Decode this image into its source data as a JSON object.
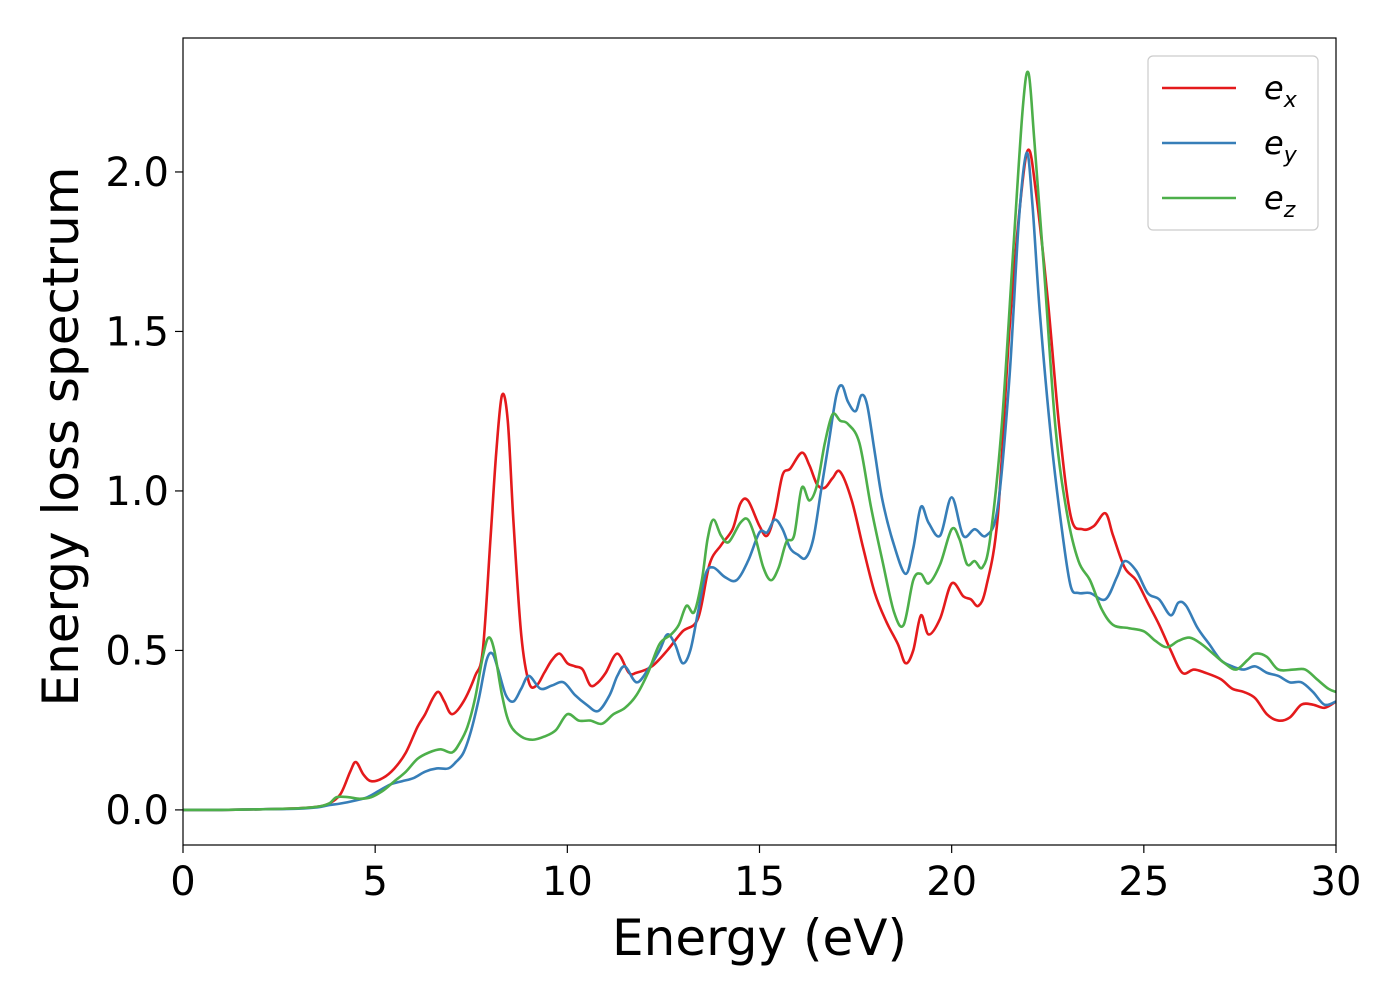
{
  "chart_data": {
    "type": "line",
    "xlabel": "Energy (eV)",
    "ylabel": "Energy loss spectrum",
    "xlim": [
      0,
      30
    ],
    "ylim": [
      -0.11,
      2.42
    ],
    "xticks": [
      0,
      5,
      10,
      15,
      20,
      25,
      30
    ],
    "xtick_labels": [
      "0",
      "5",
      "10",
      "15",
      "20",
      "25",
      "30"
    ],
    "yticks": [
      0.0,
      0.5,
      1.0,
      1.5,
      2.0
    ],
    "ytick_labels": [
      "0.0",
      "0.5",
      "1.0",
      "1.5",
      "2.0"
    ],
    "grid": false,
    "legend_position": "top-right",
    "series": [
      {
        "name": "e_x",
        "legend_base": "e",
        "legend_sub": "x",
        "color": "#e41a1c",
        "x": [
          0,
          1,
          2,
          3,
          3.5,
          3.8,
          4.1,
          4.35,
          4.5,
          4.7,
          4.9,
          5.2,
          5.5,
          5.8,
          6.1,
          6.3,
          6.5,
          6.65,
          6.8,
          7.0,
          7.3,
          7.6,
          7.8,
          8.0,
          8.15,
          8.3,
          8.45,
          8.6,
          8.8,
          9.0,
          9.2,
          9.4,
          9.6,
          9.8,
          10.0,
          10.2,
          10.4,
          10.6,
          10.8,
          11.0,
          11.3,
          11.6,
          11.8,
          12.2,
          12.6,
          13.0,
          13.4,
          13.7,
          14.0,
          14.3,
          14.5,
          14.7,
          15.0,
          15.2,
          15.4,
          15.6,
          15.8,
          16.1,
          16.3,
          16.5,
          16.7,
          16.9,
          17.1,
          17.4,
          17.7,
          18.0,
          18.3,
          18.6,
          18.8,
          19.0,
          19.2,
          19.4,
          19.7,
          20.0,
          20.3,
          20.5,
          20.7,
          20.9,
          21.2,
          21.5,
          21.8,
          22.0,
          22.2,
          22.5,
          22.8,
          23.1,
          23.4,
          23.7,
          24.0,
          24.2,
          24.5,
          24.8,
          25.1,
          25.4,
          25.7,
          26.0,
          26.3,
          26.6,
          27.0,
          27.3,
          27.6,
          27.9,
          28.2,
          28.5,
          28.8,
          29.1,
          29.4,
          29.7,
          30.0
        ],
        "y": [
          0.0,
          0.0,
          0.002,
          0.005,
          0.01,
          0.02,
          0.05,
          0.12,
          0.15,
          0.11,
          0.09,
          0.1,
          0.13,
          0.18,
          0.26,
          0.3,
          0.35,
          0.37,
          0.34,
          0.3,
          0.34,
          0.42,
          0.5,
          0.85,
          1.12,
          1.3,
          1.22,
          0.9,
          0.55,
          0.4,
          0.39,
          0.43,
          0.47,
          0.49,
          0.46,
          0.45,
          0.44,
          0.39,
          0.4,
          0.43,
          0.49,
          0.43,
          0.43,
          0.45,
          0.5,
          0.56,
          0.6,
          0.77,
          0.83,
          0.88,
          0.96,
          0.97,
          0.89,
          0.86,
          0.93,
          1.05,
          1.07,
          1.12,
          1.08,
          1.02,
          1.01,
          1.04,
          1.06,
          0.97,
          0.82,
          0.68,
          0.59,
          0.52,
          0.46,
          0.5,
          0.61,
          0.55,
          0.6,
          0.71,
          0.67,
          0.66,
          0.64,
          0.7,
          0.92,
          1.5,
          1.92,
          2.07,
          1.93,
          1.6,
          1.2,
          0.92,
          0.88,
          0.89,
          0.93,
          0.86,
          0.76,
          0.72,
          0.65,
          0.58,
          0.5,
          0.43,
          0.44,
          0.43,
          0.41,
          0.38,
          0.37,
          0.35,
          0.3,
          0.28,
          0.29,
          0.33,
          0.33,
          0.32,
          0.34
        ]
      },
      {
        "name": "e_y",
        "legend_base": "e",
        "legend_sub": "y",
        "color": "#377eb8",
        "x": [
          0,
          1,
          2,
          3,
          3.5,
          3.8,
          4.1,
          4.5,
          4.8,
          5.1,
          5.4,
          5.7,
          6.0,
          6.3,
          6.6,
          6.9,
          7.1,
          7.3,
          7.5,
          7.7,
          7.9,
          8.05,
          8.2,
          8.4,
          8.6,
          8.8,
          9.0,
          9.3,
          9.6,
          9.9,
          10.2,
          10.5,
          10.8,
          11.1,
          11.3,
          11.5,
          11.8,
          12.1,
          12.4,
          12.6,
          12.8,
          13.0,
          13.2,
          13.4,
          13.6,
          13.8,
          14.1,
          14.4,
          14.7,
          15.0,
          15.2,
          15.4,
          15.6,
          15.8,
          16.0,
          16.2,
          16.4,
          16.6,
          16.8,
          17.0,
          17.15,
          17.3,
          17.5,
          17.65,
          17.8,
          18.0,
          18.2,
          18.5,
          18.8,
          19.0,
          19.2,
          19.4,
          19.7,
          20.0,
          20.3,
          20.6,
          20.9,
          21.2,
          21.5,
          21.75,
          21.95,
          22.1,
          22.3,
          22.6,
          22.9,
          23.1,
          23.3,
          23.6,
          24.0,
          24.3,
          24.5,
          24.8,
          25.1,
          25.4,
          25.7,
          25.9,
          26.1,
          26.4,
          26.7,
          27.0,
          27.3,
          27.6,
          27.9,
          28.2,
          28.5,
          28.8,
          29.1,
          29.4,
          29.7,
          30.0
        ],
        "y": [
          0.0,
          0.0,
          0.002,
          0.004,
          0.008,
          0.015,
          0.02,
          0.03,
          0.04,
          0.06,
          0.08,
          0.09,
          0.1,
          0.12,
          0.13,
          0.13,
          0.15,
          0.18,
          0.25,
          0.35,
          0.47,
          0.49,
          0.44,
          0.36,
          0.34,
          0.38,
          0.42,
          0.38,
          0.39,
          0.4,
          0.36,
          0.33,
          0.31,
          0.36,
          0.42,
          0.45,
          0.4,
          0.44,
          0.5,
          0.55,
          0.52,
          0.46,
          0.5,
          0.62,
          0.74,
          0.76,
          0.73,
          0.72,
          0.78,
          0.87,
          0.87,
          0.91,
          0.88,
          0.82,
          0.8,
          0.79,
          0.85,
          1.0,
          1.15,
          1.3,
          1.33,
          1.28,
          1.25,
          1.3,
          1.27,
          1.12,
          0.97,
          0.83,
          0.74,
          0.82,
          0.95,
          0.9,
          0.86,
          0.98,
          0.86,
          0.88,
          0.86,
          0.95,
          1.35,
          1.85,
          2.06,
          1.9,
          1.55,
          1.15,
          0.85,
          0.7,
          0.68,
          0.68,
          0.66,
          0.73,
          0.78,
          0.75,
          0.68,
          0.66,
          0.61,
          0.65,
          0.64,
          0.57,
          0.52,
          0.47,
          0.45,
          0.44,
          0.45,
          0.43,
          0.42,
          0.4,
          0.4,
          0.37,
          0.33,
          0.34
        ]
      },
      {
        "name": "e_z",
        "legend_base": "e",
        "legend_sub": "z",
        "color": "#4daf4a",
        "x": [
          0,
          1,
          2,
          3,
          3.5,
          3.8,
          4.0,
          4.3,
          4.6,
          4.9,
          5.2,
          5.5,
          5.8,
          6.1,
          6.4,
          6.7,
          7.0,
          7.2,
          7.4,
          7.6,
          7.8,
          7.95,
          8.1,
          8.3,
          8.5,
          8.8,
          9.1,
          9.4,
          9.7,
          10.0,
          10.3,
          10.6,
          10.9,
          11.2,
          11.5,
          11.8,
          12.1,
          12.4,
          12.7,
          12.9,
          13.1,
          13.3,
          13.5,
          13.65,
          13.8,
          14.0,
          14.2,
          14.5,
          14.7,
          14.9,
          15.1,
          15.3,
          15.5,
          15.7,
          15.9,
          16.1,
          16.3,
          16.5,
          16.7,
          16.9,
          17.1,
          17.3,
          17.6,
          17.9,
          18.2,
          18.5,
          18.75,
          19.0,
          19.2,
          19.4,
          19.7,
          20.0,
          20.2,
          20.4,
          20.6,
          20.8,
          21.0,
          21.3,
          21.6,
          21.85,
          22.0,
          22.15,
          22.4,
          22.7,
          23.0,
          23.3,
          23.6,
          23.9,
          24.2,
          24.6,
          25.0,
          25.3,
          25.6,
          25.9,
          26.2,
          26.5,
          26.8,
          27.1,
          27.4,
          27.7,
          27.9,
          28.2,
          28.5,
          28.9,
          29.2,
          29.5,
          29.8,
          30.0
        ],
        "y": [
          0.0,
          0.0,
          0.002,
          0.005,
          0.01,
          0.02,
          0.04,
          0.04,
          0.035,
          0.04,
          0.06,
          0.09,
          0.12,
          0.16,
          0.18,
          0.19,
          0.18,
          0.21,
          0.26,
          0.35,
          0.48,
          0.54,
          0.5,
          0.36,
          0.27,
          0.23,
          0.22,
          0.23,
          0.25,
          0.3,
          0.28,
          0.28,
          0.27,
          0.3,
          0.32,
          0.36,
          0.43,
          0.52,
          0.55,
          0.58,
          0.64,
          0.62,
          0.72,
          0.85,
          0.91,
          0.86,
          0.84,
          0.9,
          0.91,
          0.85,
          0.76,
          0.72,
          0.76,
          0.84,
          0.86,
          1.01,
          0.97,
          1.02,
          1.15,
          1.24,
          1.22,
          1.21,
          1.15,
          0.95,
          0.78,
          0.62,
          0.58,
          0.72,
          0.74,
          0.71,
          0.77,
          0.88,
          0.85,
          0.77,
          0.78,
          0.76,
          0.85,
          1.2,
          1.75,
          2.2,
          2.31,
          2.1,
          1.7,
          1.2,
          0.93,
          0.78,
          0.72,
          0.63,
          0.58,
          0.57,
          0.56,
          0.53,
          0.51,
          0.53,
          0.54,
          0.52,
          0.49,
          0.46,
          0.44,
          0.47,
          0.49,
          0.48,
          0.44,
          0.44,
          0.44,
          0.41,
          0.38,
          0.37
        ]
      }
    ]
  }
}
